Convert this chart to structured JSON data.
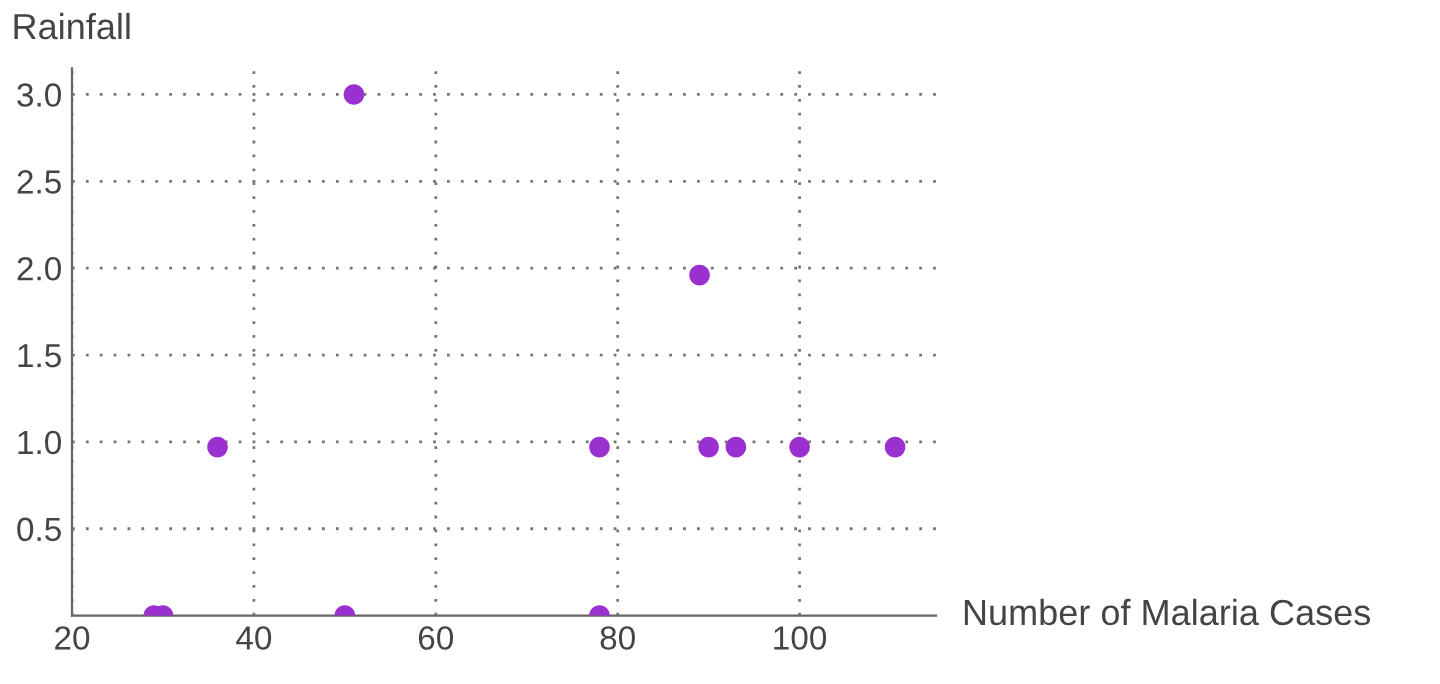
{
  "chart_data": {
    "type": "scatter",
    "xlabel": "Number of Malaria Cases",
    "ylabel": "Rainfall",
    "x": [
      29,
      30,
      50,
      78,
      36,
      51,
      78,
      89,
      90,
      93,
      100,
      110.5
    ],
    "values": [
      0,
      0,
      0,
      0,
      0.97,
      3.0,
      0.97,
      1.96,
      0.97,
      0.97,
      0.97,
      0.97
    ],
    "color": "#9b30d0",
    "marker": "circle",
    "xlim": [
      20,
      115
    ],
    "ylim": [
      0,
      3.15
    ],
    "xticks": [
      20,
      40,
      60,
      80,
      100
    ],
    "yticks": [
      0.5,
      {
        "value": 1,
        "label": "1.0"
      },
      1.5,
      {
        "value": 2,
        "label": "2.0"
      },
      2.5,
      {
        "value": 3,
        "label": "3.0"
      }
    ],
    "grid": true
  }
}
